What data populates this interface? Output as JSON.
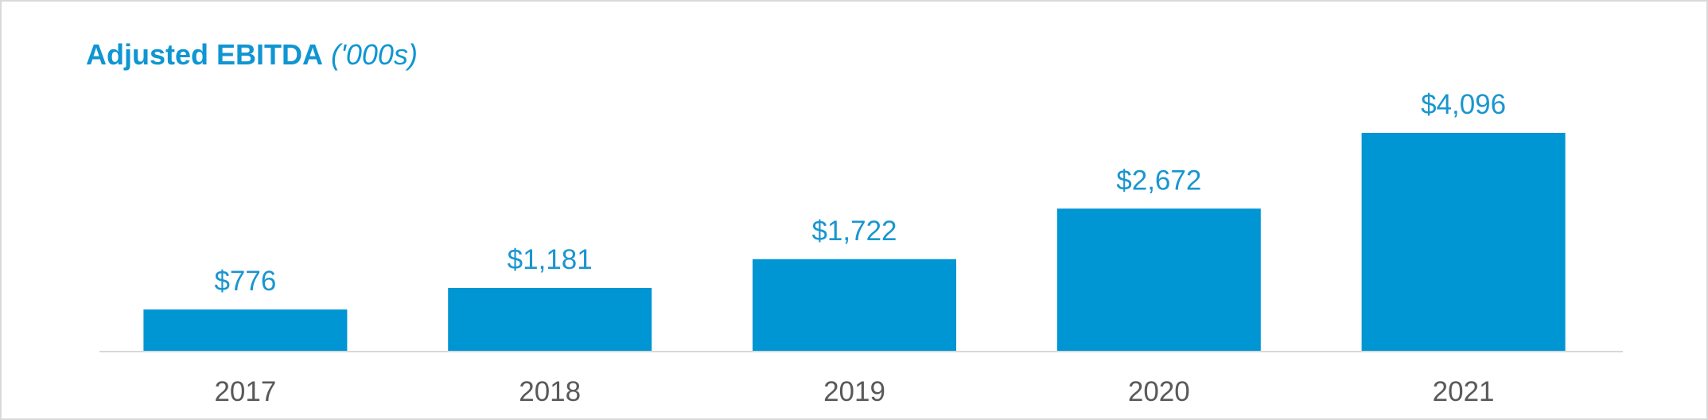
{
  "chart_data": {
    "type": "bar",
    "title": "Adjusted EBITDA",
    "title_unit": "('000s)",
    "categories": [
      "2017",
      "2018",
      "2019",
      "2020",
      "2021"
    ],
    "values": [
      776,
      1181,
      1722,
      2672,
      4096
    ],
    "data_labels": [
      "$776",
      "$1,181",
      "$1,722",
      "$2,672",
      "$4,096"
    ],
    "xlabel": "",
    "ylabel": "",
    "ylim": [
      0,
      4500
    ],
    "grid": false,
    "legend": "none",
    "colors": {
      "bar": "#0095d3",
      "title": "#0f96d2",
      "data_label": "#1a96cf",
      "tick_label": "#595959",
      "axis": "#d9d9d9"
    }
  }
}
